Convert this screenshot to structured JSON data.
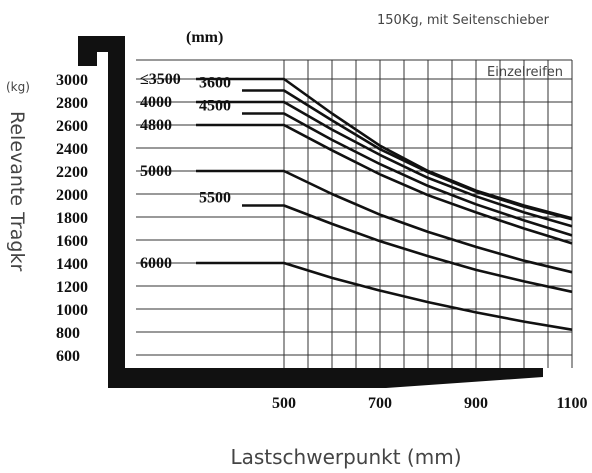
{
  "chart_data": {
    "type": "line",
    "subtitle": "150Kg, mit Seitenschieber",
    "tire_note": "Einzelreifen",
    "xlabel": "Lastschwerpunkt (mm)",
    "ylabel": "Relevante Tragkr",
    "ylabel_unit": "(kg)",
    "top_unit": "(mm)",
    "xlim": [
      400,
      1100
    ],
    "ylim": [
      600,
      3000
    ],
    "x_ticks": [
      {
        "value": 500,
        "label": "500"
      },
      {
        "value": 700,
        "label": "700"
      },
      {
        "value": 900,
        "label": "900"
      },
      {
        "value": 1100,
        "label": "1100"
      }
    ],
    "y_ticks": [
      {
        "value": 600,
        "label": "600"
      },
      {
        "value": 800,
        "label": "800"
      },
      {
        "value": 1000,
        "label": "1000"
      },
      {
        "value": 1200,
        "label": "1200"
      },
      {
        "value": 1400,
        "label": "1400"
      },
      {
        "value": 1600,
        "label": "1600"
      },
      {
        "value": 1800,
        "label": "1800"
      },
      {
        "value": 2000,
        "label": "2000"
      },
      {
        "value": 2200,
        "label": "2200"
      },
      {
        "value": 2400,
        "label": "2400"
      },
      {
        "value": 2600,
        "label": "2600"
      },
      {
        "value": 2800,
        "label": "2800"
      },
      {
        "value": 3000,
        "label": "3000"
      }
    ],
    "series": [
      {
        "name": "≤3500",
        "label_row": 0,
        "x": [
          500,
          600,
          700,
          800,
          900,
          1000,
          1100
        ],
        "y": [
          3000,
          2700,
          2420,
          2200,
          2030,
          1900,
          1790
        ]
      },
      {
        "name": "3600",
        "label_row": 1,
        "x": [
          500,
          600,
          700,
          800,
          900,
          1000,
          1100
        ],
        "y": [
          2900,
          2640,
          2390,
          2190,
          2020,
          1890,
          1780
        ]
      },
      {
        "name": "4000",
        "label_row": 0,
        "x": [
          500,
          600,
          700,
          800,
          900,
          1000,
          1100
        ],
        "y": [
          2800,
          2560,
          2340,
          2140,
          1980,
          1840,
          1720
        ]
      },
      {
        "name": "4500",
        "label_row": 1,
        "x": [
          500,
          600,
          700,
          800,
          900,
          1000,
          1100
        ],
        "y": [
          2700,
          2470,
          2260,
          2070,
          1910,
          1770,
          1640
        ]
      },
      {
        "name": "4800",
        "label_row": 0,
        "x": [
          500,
          600,
          700,
          800,
          900,
          1000,
          1100
        ],
        "y": [
          2600,
          2380,
          2170,
          1990,
          1840,
          1700,
          1570
        ]
      },
      {
        "name": "5000",
        "label_row": 0,
        "x": [
          500,
          600,
          700,
          800,
          900,
          1000,
          1100
        ],
        "y": [
          2200,
          2000,
          1820,
          1670,
          1540,
          1420,
          1320
        ]
      },
      {
        "name": "5500",
        "label_row": 1,
        "x": [
          500,
          600,
          700,
          800,
          900,
          1000,
          1100
        ],
        "y": [
          1900,
          1740,
          1590,
          1460,
          1340,
          1240,
          1150
        ]
      },
      {
        "name": "6000",
        "label_row": 0,
        "x": [
          500,
          600,
          700,
          800,
          900,
          1000,
          1100
        ],
        "y": [
          1400,
          1270,
          1160,
          1060,
          970,
          890,
          820
        ]
      }
    ]
  }
}
